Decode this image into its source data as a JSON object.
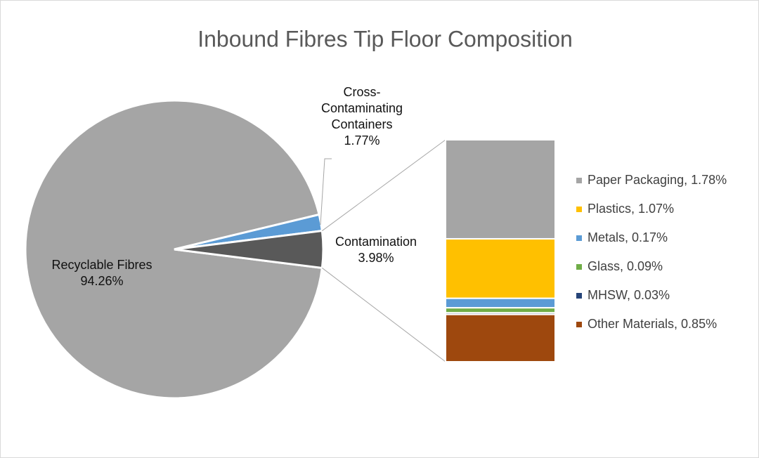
{
  "chart_data": {
    "type": "pie",
    "title": "Inbound Fibres Tip Floor Composition",
    "categories": [
      "Recyclable Fibres",
      "Cross-Contaminating Containers",
      "Contamination"
    ],
    "values": [
      94.26,
      1.77,
      3.98
    ],
    "value_labels": [
      "94.26%",
      "1.77%",
      "3.98%"
    ],
    "colors": [
      "#a5a5a5",
      "#5b9bd5",
      "#595959"
    ],
    "breakdown": {
      "labels": [
        "Paper Packaging, 1.78%",
        "Plastics, 1.07%",
        "Metals, 0.17%",
        "Glass, 0.09%",
        "MHSW, 0.03%",
        "Other Materials, 0.85%"
      ],
      "values": [
        1.78,
        1.07,
        0.17,
        0.09,
        0.03,
        0.85
      ],
      "colors": [
        "#a5a5a5",
        "#ffc000",
        "#5b9bd5",
        "#70ad47",
        "#264478",
        "#9e480e"
      ]
    }
  }
}
